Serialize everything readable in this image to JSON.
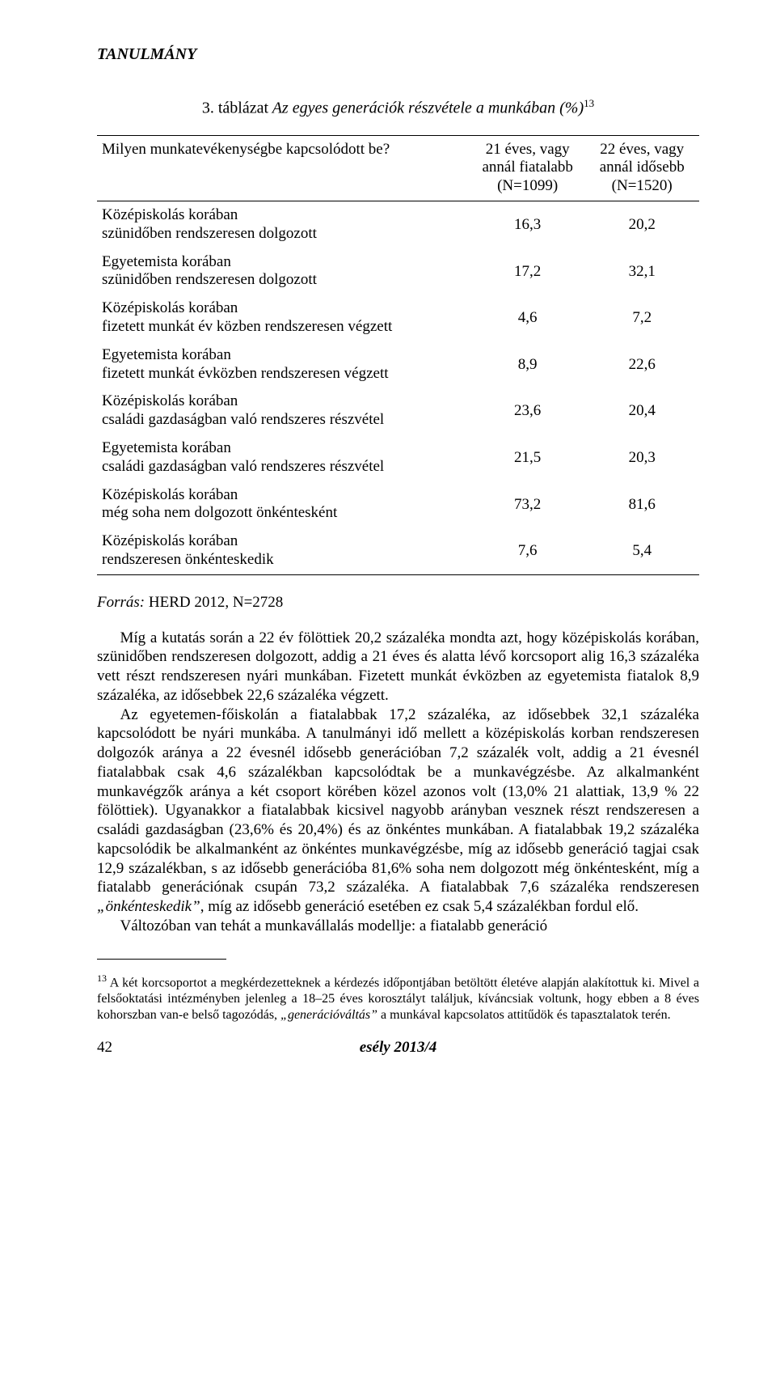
{
  "running_head": "TANULMÁNY",
  "table": {
    "caption_prefix": "3. táblázat",
    "caption_title": "Az egyes generációk részvétele a munkában (%)",
    "caption_sup": "13",
    "header": {
      "col0": "Milyen munkatevékenységbe kapcsolódott be?",
      "col1": "21 éves, vagy annál fiatalabb (N=1099)",
      "col2": "22 éves, vagy annál idősebb (N=1520)"
    },
    "rows": [
      {
        "label": "Középiskolás korában\nszünidőben rendszeresen dolgozott",
        "c1": "16,3",
        "c2": "20,2"
      },
      {
        "label": "Egyetemista korában\nszünidőben rendszeresen dolgozott",
        "c1": "17,2",
        "c2": "32,1"
      },
      {
        "label": "Középiskolás korában\nfizetett munkát év közben rendszeresen végzett",
        "c1": "4,6",
        "c2": "7,2"
      },
      {
        "label": "Egyetemista korában\nfizetett munkát évközben rendszeresen végzett",
        "c1": "8,9",
        "c2": "22,6"
      },
      {
        "label": "Középiskolás korában\ncsaládi gazdaságban való rendszeres részvétel",
        "c1": "23,6",
        "c2": "20,4"
      },
      {
        "label": "Egyetemista korában\ncsaládi gazdaságban való rendszeres részvétel",
        "c1": "21,5",
        "c2": "20,3"
      },
      {
        "label": "Középiskolás korában\nmég soha nem dolgozott önkéntesként",
        "c1": "73,2",
        "c2": "81,6"
      },
      {
        "label": "Középiskolás korában\nrendszeresen önkénteskedik",
        "c1": "7,6",
        "c2": "5,4"
      }
    ],
    "col_widths": [
      "62%",
      "19%",
      "19%"
    ],
    "border_color": "#000000",
    "font_size_pt": 14
  },
  "source": {
    "label": "Forrás:",
    "value": "HERD 2012, N=2728"
  },
  "paragraphs": {
    "p1": "Míg a kutatás során a 22 év fölöttiek 20,2 százaléka mondta azt, hogy középiskolás korában, szünidőben rendszeresen dolgozott, addig a 21 éves és alatta lévő korcsoport alig 16,3 százaléka vett részt rendszeresen nyári munkában. Fizetett munkát évközben az egyetemista fiatalok 8,9 százaléka, az idősebbek 22,6 százaléka végzett.",
    "p2_a": "Az egyetemen-főiskolán a fiatalabbak 17,2 százaléka, az idősebbek 32,1 százaléka kapcsolódott be nyári munkába. A tanulmányi idő mellett a középiskolás korban rendszeresen dolgozók aránya a 22 évesnél idősebb generációban 7,2 százalék volt, addig a 21 évesnél fiatalabbak csak 4,6 százalékban kapcsolódtak be a munkavégzésbe. Az alkalmanként munkavégzők aránya a két csoport körében közel azonos volt (13,0% 21 alattiak, 13,9 % 22 fölöttiek). Ugyanakkor a fiatalabbak kicsivel nagyobb arányban vesznek részt rendszeresen a családi gazdaságban (23,6% és 20,4%) és az önkéntes munkában. A fiatalabbak 19,2 százaléka kapcsolódik be alkalmanként az önkéntes munkavégzésbe, míg az idősebb generáció tagjai csak 12,9 százalékban, s az idősebb generációba 81,6% soha nem dolgozott még önkéntesként, míg a fiatalabb generációnak csupán 73,2 százaléka. A fiatalabbak 7,6 százaléka rendszeresen ",
    "p2_quote": "„önkénteskedik”",
    "p2_b": ", míg az idősebb generáció esetében ez csak 5,4 százalékban fordul elő.",
    "p3": "Változóban van tehát a munkavállalás modellje: a fiatalabb generáció"
  },
  "footnote": {
    "num": "13",
    "text_a": "A két korcsoportot a megkérdezetteknek a kérdezés időpontjában betöltött életéve alapján alakítottuk ki. Mivel a felsőoktatási intézményben jelenleg a 18–25 éves korosztályt találjuk, kíváncsiak voltunk, hogy ebben a 8 éves kohorszban van-e belső tagozódás, ",
    "text_quote": "„generációváltás”",
    "text_b": " a munkával kapcsolatos attitűdök és tapasztalatok terén."
  },
  "footer": {
    "page": "42",
    "journal": "esély 2013/4"
  },
  "colors": {
    "text": "#000000",
    "background": "#ffffff",
    "rule": "#000000"
  }
}
